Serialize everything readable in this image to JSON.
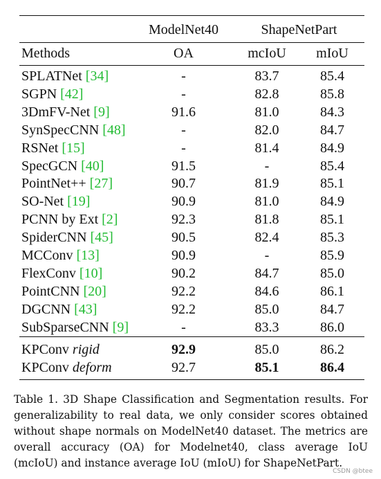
{
  "table": {
    "group_headers": {
      "modelnet": "ModelNet40",
      "shapenet": "ShapeNetPart"
    },
    "columns": {
      "method": "Methods",
      "oa": "OA",
      "mciou": "mcIoU",
      "miou": "mIoU"
    },
    "rows": [
      {
        "name": "SPLATNet",
        "ref": "[34]",
        "oa": "-",
        "mciou": "83.7",
        "miou": "85.4"
      },
      {
        "name": "SGPN",
        "ref": "[42]",
        "oa": "-",
        "mciou": "82.8",
        "miou": "85.8"
      },
      {
        "name": "3DmFV-Net",
        "ref": "[9]",
        "oa": "91.6",
        "mciou": "81.0",
        "miou": "84.3"
      },
      {
        "name": "SynSpecCNN",
        "ref": "[48]",
        "oa": "-",
        "mciou": "82.0",
        "miou": "84.7"
      },
      {
        "name": "RSNet",
        "ref": "[15]",
        "oa": "-",
        "mciou": "81.4",
        "miou": "84.9"
      },
      {
        "name": "SpecGCN",
        "ref": "[40]",
        "oa": "91.5",
        "mciou": "-",
        "miou": "85.4"
      },
      {
        "name": "PointNet++",
        "ref": "[27]",
        "oa": "90.7",
        "mciou": "81.9",
        "miou": "85.1"
      },
      {
        "name": "SO-Net",
        "ref": "[19]",
        "oa": "90.9",
        "mciou": "81.0",
        "miou": "84.9"
      },
      {
        "name": "PCNN by Ext",
        "ref": "[2]",
        "oa": "92.3",
        "mciou": "81.8",
        "miou": "85.1"
      },
      {
        "name": "SpiderCNN",
        "ref": "[45]",
        "oa": "90.5",
        "mciou": "82.4",
        "miou": "85.3"
      },
      {
        "name": "MCConv",
        "ref": "[13]",
        "oa": "90.9",
        "mciou": "-",
        "miou": "85.9"
      },
      {
        "name": "FlexConv",
        "ref": "[10]",
        "oa": "90.2",
        "mciou": "84.7",
        "miou": "85.0"
      },
      {
        "name": "PointCNN",
        "ref": "[20]",
        "oa": "92.2",
        "mciou": "84.6",
        "miou": "86.1"
      },
      {
        "name": "DGCNN",
        "ref": "[43]",
        "oa": "92.2",
        "mciou": "85.0",
        "miou": "84.7"
      },
      {
        "name": "SubSparseCNN",
        "ref": "[9]",
        "oa": "-",
        "mciou": "83.3",
        "miou": "86.0"
      }
    ],
    "ours": [
      {
        "name": "KPConv",
        "variant": "rigid",
        "oa": "92.9",
        "mciou": "85.0",
        "miou": "86.2"
      },
      {
        "name": "KPConv",
        "variant": "deform",
        "oa": "92.7",
        "mciou": "85.1",
        "miou": "86.4"
      }
    ]
  },
  "caption": "Table 1. 3D Shape Classification and Segmentation results. For generalizability to real data, we only consider scores obtained without shape normals on ModelNet40 dataset. The metrics are overall accuracy (OA) for Modelnet40, class average IoU (mcIoU) and instance average IoU (mIoU) for ShapeNetPart.",
  "watermark": "CSDN @btee"
}
